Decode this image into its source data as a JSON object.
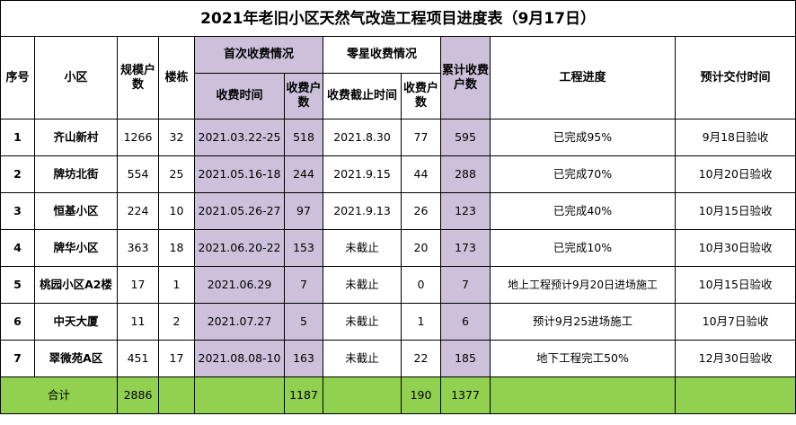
{
  "title": "2021年老旧小区天然气改造工程项目进度表（9月17日）",
  "headers": {
    "no": "序号",
    "community": "小区",
    "scale": "规模户数",
    "buildings": "楼栋",
    "first_group": "首次收费情况",
    "first_time": "收费时间",
    "first_count": "收费户数",
    "extra_group": "零星收费情况",
    "extra_deadline": "收费截止时间",
    "extra_count": "收费户数",
    "cumulative": "累计收费户数",
    "progress": "工程进度",
    "delivery": "预计交付时间"
  },
  "rows": [
    {
      "no": "1",
      "name": "齐山新村",
      "scale": "1266",
      "buildings": "32",
      "first_time": "2021.03.22-25",
      "first_count": "518",
      "extra_deadline": "2021.8.30",
      "extra_count": "77",
      "cumulative": "595",
      "progress": "已完成95%",
      "delivery": "9月18日验收"
    },
    {
      "no": "2",
      "name": "牌坊北街",
      "scale": "554",
      "buildings": "25",
      "first_time": "2021.05.16-18",
      "first_count": "244",
      "extra_deadline": "2021.9.15",
      "extra_count": "44",
      "cumulative": "288",
      "progress": "已完成70%",
      "delivery": "10月20日验收"
    },
    {
      "no": "3",
      "name": "恒基小区",
      "scale": "224",
      "buildings": "10",
      "first_time": "2021.05.26-27",
      "first_count": "97",
      "extra_deadline": "2021.9.13",
      "extra_count": "26",
      "cumulative": "123",
      "progress": "已完成40%",
      "delivery": "10月15日验收"
    },
    {
      "no": "4",
      "name": "牌华小区",
      "scale": "363",
      "buildings": "18",
      "first_time": "2021.06.20-22",
      "first_count": "153",
      "extra_deadline": "未截止",
      "extra_count": "20",
      "cumulative": "173",
      "progress": "已完成10%",
      "delivery": "10月30日验收"
    },
    {
      "no": "5",
      "name": "桃园小区A2楼",
      "scale": "17",
      "buildings": "1",
      "first_time": "2021.06.29",
      "first_count": "7",
      "extra_deadline": "未截止",
      "extra_count": "0",
      "cumulative": "7",
      "progress": "地上工程预计9月20日进场施工",
      "delivery": "10月15日验收"
    },
    {
      "no": "6",
      "name": "中天大厦",
      "scale": "11",
      "buildings": "2",
      "first_time": "2021.07.27",
      "first_count": "5",
      "extra_deadline": "未截止",
      "extra_count": "1",
      "cumulative": "6",
      "progress": "预计9月25进场施工",
      "delivery": "10月7日验收"
    },
    {
      "no": "7",
      "name": "翠微苑A区",
      "scale": "451",
      "buildings": "17",
      "first_time": "2021.08.08-10",
      "first_count": "163",
      "extra_deadline": "未截止",
      "extra_count": "22",
      "cumulative": "185",
      "progress": "地下工程完工50%",
      "delivery": "12月30日验收"
    }
  ],
  "total": {
    "label": "合计",
    "scale": "2886",
    "first_count": "1187",
    "extra_count": "190",
    "cumulative": "1377"
  },
  "colors": {
    "purple": "#ccc0da",
    "green": "#92d050"
  }
}
